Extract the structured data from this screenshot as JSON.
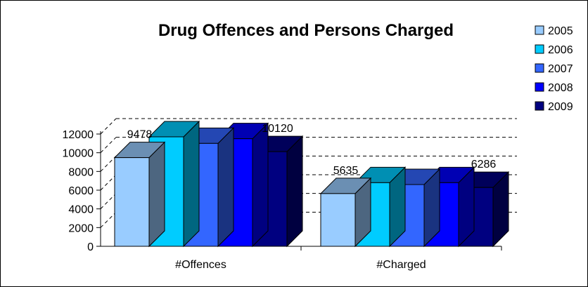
{
  "chart_data": {
    "type": "bar",
    "title": "Drug Offences and Persons Charged",
    "categories": [
      "#Offences",
      "#Charged"
    ],
    "series": [
      {
        "name": "2005",
        "values": [
          9478,
          5635
        ],
        "color": "#99CCFF"
      },
      {
        "name": "2006",
        "values": [
          11700,
          6800
        ],
        "color": "#00CCFF"
      },
      {
        "name": "2007",
        "values": [
          11000,
          6600
        ],
        "color": "#3366FF"
      },
      {
        "name": "2008",
        "values": [
          11500,
          6800
        ],
        "color": "#0000FF"
      },
      {
        "name": "2009",
        "values": [
          10120,
          6286
        ],
        "color": "#000080"
      }
    ],
    "data_labels": [
      {
        "text": "9478",
        "series": "2005",
        "category": "#Offences"
      },
      {
        "text": "10120",
        "series": "2009",
        "category": "#Offences"
      },
      {
        "text": "5635",
        "series": "2005",
        "category": "#Charged"
      },
      {
        "text": "6286",
        "series": "2009",
        "category": "#Charged"
      }
    ],
    "ylim": [
      0,
      12000
    ],
    "yticks": [
      "0",
      "2000",
      "4000",
      "6000",
      "8000",
      "10000",
      "12000"
    ],
    "grid": "dashed horizontal",
    "legend": "right",
    "style": "3d-clustered-column"
  }
}
